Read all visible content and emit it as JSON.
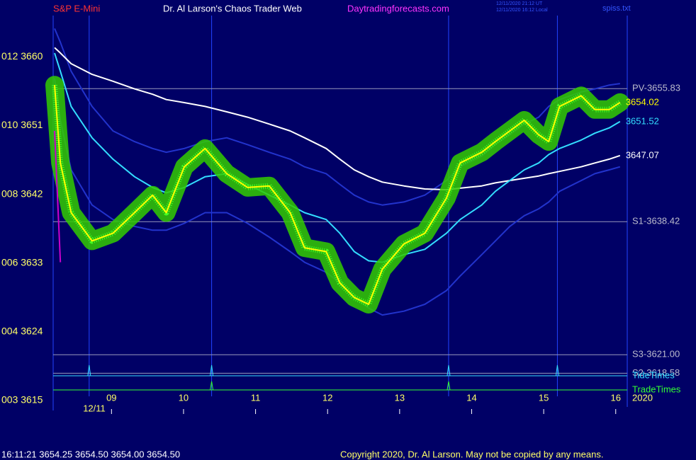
{
  "header": {
    "symbol": "S&P E-Mini",
    "title": "Dr. Al Larson's Chaos Trader Web",
    "site": "Daytradingforecasts.com",
    "time_ut": "12/11/2020 21:12 UT",
    "time_local": "12/11/2020 16:12 Local",
    "file": "spiss.txt"
  },
  "chart_data": {
    "type": "line",
    "x": [
      8.21,
      8.29,
      8.44,
      8.73,
      9.02,
      9.32,
      9.57,
      9.76,
      10.01,
      10.3,
      10.6,
      10.89,
      11.19,
      11.48,
      11.68,
      11.98,
      12.17,
      12.37,
      12.57,
      12.76,
      13.06,
      13.35,
      13.65,
      13.84,
      14.14,
      14.33,
      14.53,
      14.73,
      14.93,
      15.07,
      15.22,
      15.52,
      15.71,
      15.91,
      16.06
    ],
    "xlim": [
      8.19,
      16.16
    ],
    "xticks": [
      {
        "value": 9,
        "label": "09"
      },
      10,
      11,
      12,
      13,
      14,
      15,
      16
    ],
    "date_label": "12/11",
    "year_label": "2020",
    "ylim": [
      3615,
      3665.4
    ],
    "yticks": [
      {
        "value": 3660,
        "label": "012 3660"
      },
      {
        "value": 3651,
        "label": "010 3651"
      },
      {
        "value": 3642,
        "label": "008 3642"
      },
      {
        "value": 3633,
        "label": "006 3633"
      },
      {
        "value": 3624,
        "label": "004 3624"
      },
      {
        "value": 3615,
        "label": "003 3615"
      }
    ],
    "series": [
      {
        "color": "#2233cc",
        "values": [
          3663.7,
          3661.9,
          3658.1,
          3653.5,
          3650.3,
          3648.9,
          3648.0,
          3647.5,
          3648.0,
          3648.9,
          3649.4,
          3648.5,
          3647.5,
          3646.6,
          3645.6,
          3644.7,
          3643.3,
          3641.9,
          3641.0,
          3640.6,
          3641.0,
          3641.9,
          3643.8,
          3645.6,
          3647.0,
          3648.5,
          3649.8,
          3651.2,
          3652.1,
          3653.5,
          3654.4,
          3655.4,
          3655.8,
          3656.3,
          3656.5
        ]
      },
      {
        "color": "#2233cc",
        "values": [
          3657.2,
          3651.7,
          3645.2,
          3640.6,
          3638.7,
          3637.8,
          3637.3,
          3637.3,
          3638.2,
          3639.6,
          3639.6,
          3638.2,
          3636.4,
          3634.5,
          3633.1,
          3631.8,
          3630.4,
          3628.5,
          3627.1,
          3626.2,
          3626.7,
          3627.6,
          3629.4,
          3631.3,
          3634.1,
          3635.9,
          3637.8,
          3639.2,
          3640.1,
          3641.0,
          3642.4,
          3643.8,
          3644.7,
          3645.2,
          3645.6
        ]
      },
      {
        "color": "#ffffff",
        "label_last": true,
        "values": [
          3661.2,
          3660.5,
          3659.1,
          3657.7,
          3656.8,
          3655.8,
          3655.1,
          3654.4,
          3654.0,
          3653.5,
          3652.8,
          3652.1,
          3651.2,
          3650.3,
          3649.4,
          3648.0,
          3646.6,
          3645.2,
          3644.3,
          3643.6,
          3643.1,
          3642.7,
          3642.6,
          3642.8,
          3643.1,
          3643.5,
          3643.8,
          3644.1,
          3644.4,
          3644.7,
          3645.0,
          3645.6,
          3646.1,
          3646.6,
          3647.07
        ]
      },
      {
        "color": "#33ddff",
        "label_last": true,
        "values": [
          3660.5,
          3658.1,
          3653.5,
          3649.4,
          3646.6,
          3644.3,
          3642.9,
          3642.2,
          3642.9,
          3644.3,
          3644.7,
          3643.3,
          3641.9,
          3640.6,
          3639.6,
          3638.7,
          3636.9,
          3634.5,
          3633.3,
          3633.1,
          3634.1,
          3634.8,
          3636.9,
          3638.7,
          3640.6,
          3642.4,
          3643.8,
          3645.2,
          3646.1,
          3647.2,
          3648.0,
          3649.1,
          3650.0,
          3650.7,
          3651.52
        ]
      },
      {
        "color": "#ffff00",
        "glow": "#33cc00",
        "label_last": true,
        "values": [
          3656.3,
          3646.1,
          3639.6,
          3635.9,
          3636.9,
          3639.6,
          3641.9,
          3639.6,
          3645.6,
          3648.0,
          3644.7,
          3642.9,
          3643.1,
          3639.6,
          3635.0,
          3634.5,
          3630.4,
          3628.5,
          3627.6,
          3632.2,
          3635.5,
          3636.9,
          3641.5,
          3646.1,
          3647.5,
          3648.9,
          3650.3,
          3651.7,
          3649.8,
          3648.9,
          3653.5,
          3654.9,
          3653.1,
          3653.1,
          3654.02
        ]
      },
      {
        "color": "#cc00cc",
        "values": [
          3650.3,
          3633.1,
          null,
          null,
          null,
          null,
          null,
          null,
          null,
          null,
          null,
          null,
          null,
          null,
          null,
          null,
          null,
          null,
          null,
          null,
          null,
          null,
          null,
          null,
          null,
          null,
          null,
          null,
          null,
          null,
          null,
          null,
          null,
          null,
          null
        ]
      }
    ],
    "levels": [
      {
        "value": 3655.83,
        "label": "PV-3655.83"
      },
      {
        "value": 3638.42,
        "label": "S1-3638.42"
      },
      {
        "value": 3621.0,
        "label": "S3-3621.00"
      },
      {
        "value": 3618.58,
        "label": "S2-3618.58"
      }
    ],
    "tide_times": {
      "label": "TideTimes",
      "color": "#33ddff",
      "x": [
        8.69,
        10.39,
        13.68,
        15.19
      ]
    },
    "trade_times": {
      "label": "TradeTimes",
      "color": "#33ff33",
      "x": [
        10.39,
        13.68
      ]
    }
  },
  "footer": {
    "quote": "16:11:21  3654.25 3654.50 3654.00 3654.50",
    "copyright": "Copyright 2020, Dr. Al Larson. May not be copied by any means."
  }
}
